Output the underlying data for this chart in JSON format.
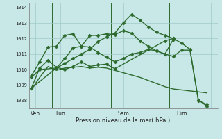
{
  "background_color": "#c8e8e8",
  "grid_color": "#a0c8c8",
  "line_color": "#2d6a2d",
  "marker_color": "#2d6a2d",
  "xlabel": "Pression niveau de la mer( hPa )",
  "ylim": [
    1007.5,
    1014.3
  ],
  "xlim": [
    -0.3,
    22.3
  ],
  "yticks": [
    1008,
    1009,
    1010,
    1011,
    1012,
    1013,
    1014
  ],
  "xtick_positions": [
    0.5,
    3.5,
    11,
    18,
    21.5
  ],
  "xtick_labels": [
    "Ven",
    "Lun",
    "Sam",
    "Dim",
    ""
  ],
  "vline_positions": [
    2.5,
    9.5,
    16.5
  ],
  "series": [
    {
      "x": [
        0,
        1,
        3,
        4,
        5,
        6,
        7,
        8,
        9,
        10,
        11,
        12,
        13,
        14,
        15,
        16,
        17,
        18,
        19,
        20,
        21
      ],
      "y": [
        1009.5,
        1010.0,
        1010.1,
        1010.4,
        1010.7,
        1011.0,
        1011.3,
        1011.8,
        1012.1,
        1012.35,
        1013.0,
        1013.55,
        1013.2,
        1012.75,
        1012.4,
        1012.2,
        1012.0,
        1011.7,
        1011.3,
        1008.0,
        1007.75
      ],
      "marker": "D",
      "markersize": 2.5,
      "linewidth": 1.0,
      "has_markers": true
    },
    {
      "x": [
        0,
        3,
        4,
        5,
        6,
        7,
        8,
        9,
        10,
        11,
        12,
        13,
        14,
        15,
        16,
        17,
        18,
        19,
        20,
        21
      ],
      "y": [
        1008.8,
        1010.1,
        1010.7,
        1011.4,
        1011.5,
        1012.2,
        1012.2,
        1012.3,
        1012.25,
        1012.5,
        1012.35,
        1011.85,
        1011.5,
        1011.2,
        1011.0,
        1010.85,
        1011.25,
        1011.25,
        1008.05,
        1007.65
      ],
      "marker": "D",
      "markersize": 2.5,
      "linewidth": 1.0,
      "has_markers": true
    },
    {
      "x": [
        0,
        1,
        2,
        3,
        4,
        5,
        6,
        7,
        8,
        9,
        10,
        11,
        12,
        13,
        14,
        15,
        16,
        17
      ],
      "y": [
        1009.6,
        1010.5,
        1011.45,
        1011.5,
        1012.2,
        1012.3,
        1011.5,
        1011.45,
        1011.1,
        1010.8,
        1010.5,
        1010.7,
        1011.0,
        1011.1,
        1011.3,
        1011.2,
        1011.0,
        1011.95
      ],
      "marker": "D",
      "markersize": 2.5,
      "linewidth": 1.0,
      "has_markers": true
    },
    {
      "x": [
        0,
        1,
        2,
        3,
        4,
        5,
        6,
        7,
        8,
        9,
        10,
        16,
        17
      ],
      "y": [
        1008.8,
        1010.1,
        1010.6,
        1010.15,
        1010.0,
        1010.2,
        1010.5,
        1010.2,
        1010.3,
        1010.35,
        1010.05,
        1011.85,
        1012.0
      ],
      "marker": "D",
      "markersize": 2.5,
      "linewidth": 1.0,
      "has_markers": true
    },
    {
      "x": [
        0,
        1,
        2,
        3,
        4,
        5,
        6,
        7,
        8,
        9,
        10,
        11,
        12,
        13,
        14,
        15,
        16,
        17,
        21
      ],
      "y": [
        1008.7,
        1009.5,
        1010.2,
        1009.95,
        1010.1,
        1010.15,
        1010.2,
        1010.1,
        1010.15,
        1010.1,
        1009.95,
        1009.8,
        1009.65,
        1009.5,
        1009.3,
        1009.1,
        1008.9,
        1008.75,
        1008.5
      ],
      "marker": null,
      "markersize": 0,
      "linewidth": 1.0,
      "has_markers": false
    }
  ]
}
